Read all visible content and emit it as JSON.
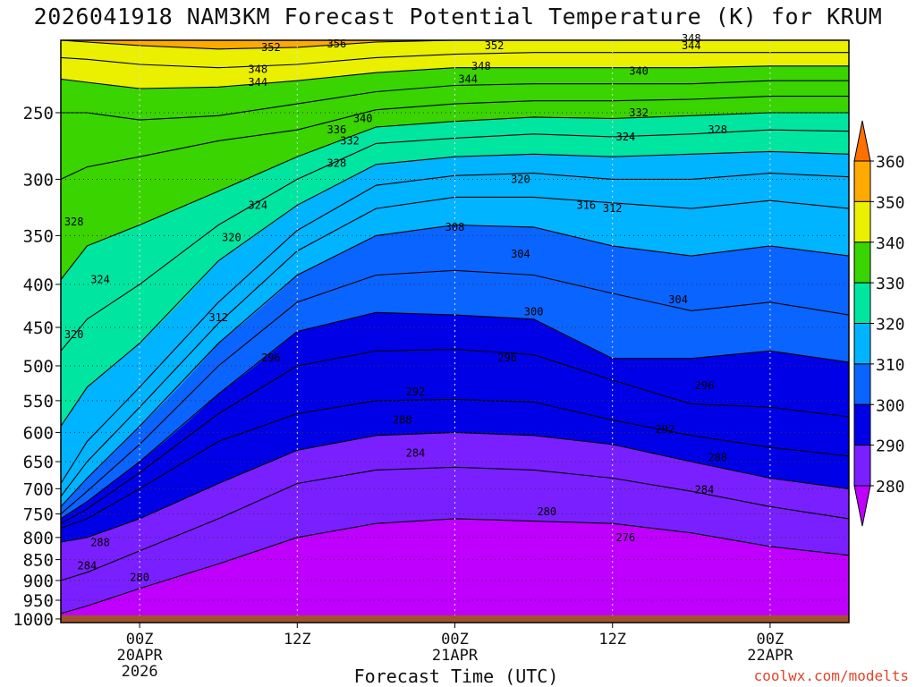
{
  "title": "2026041918 NAM3KM Forecast Potential Temperature (K) for KRUM",
  "credit": "coolwx.com/modelts",
  "chart_data": {
    "type": "heatmap",
    "title": "2026041918 NAM3KM Forecast Potential Temperature (K) for KRUM",
    "xlabel": "Forecast Time (UTC)",
    "ylabel": "",
    "x_start_label": "19 APR 2026 18Z",
    "xlim_hours_from_00Z_20APR": [
      -6,
      54
    ],
    "x_ticks": [
      {
        "hour": 0,
        "lines": [
          "00Z",
          "20APR",
          "2026"
        ]
      },
      {
        "hour": 12,
        "lines": [
          "12Z"
        ]
      },
      {
        "hour": 24,
        "lines": [
          "00Z",
          "21APR"
        ]
      },
      {
        "hour": 36,
        "lines": [
          "12Z"
        ]
      },
      {
        "hour": 48,
        "lines": [
          "00Z",
          "22APR"
        ]
      }
    ],
    "y_scale": "log-pressure",
    "ylim_hPa": [
      1000,
      200
    ],
    "y_ticks": [
      250,
      300,
      350,
      400,
      450,
      500,
      550,
      600,
      650,
      700,
      750,
      800,
      850,
      900,
      950,
      1000
    ],
    "grid": "dotted",
    "colorbar": {
      "placement": "right",
      "ticks": [
        280,
        290,
        300,
        310,
        320,
        330,
        340,
        350,
        360
      ],
      "colors": [
        "#bf00ff",
        "#7a1fff",
        "#0000e6",
        "#0a64ff",
        "#00b4ff",
        "#00e6a0",
        "#3ad400",
        "#eaf000",
        "#ffaa00",
        "#ff7000"
      ]
    },
    "contour_interval_K": 4,
    "ground_color": "#a0522d",
    "ground_top_hPa": 990,
    "potential_temperature_contours_K": [
      {
        "theta": 280,
        "points": [
          [
            -6,
            985
          ],
          [
            -4,
            965
          ],
          [
            0,
            920
          ],
          [
            6,
            860
          ],
          [
            12,
            800
          ],
          [
            18,
            770
          ],
          [
            24,
            760
          ],
          [
            30,
            765
          ],
          [
            36,
            770
          ],
          [
            42,
            790
          ],
          [
            48,
            820
          ],
          [
            54,
            840
          ]
        ]
      },
      {
        "theta": 284,
        "points": [
          [
            -6,
            900
          ],
          [
            -4,
            880
          ],
          [
            0,
            830
          ],
          [
            6,
            760
          ],
          [
            12,
            690
          ],
          [
            18,
            665
          ],
          [
            24,
            660
          ],
          [
            30,
            665
          ],
          [
            36,
            680
          ],
          [
            42,
            705
          ],
          [
            48,
            735
          ],
          [
            54,
            760
          ]
        ]
      },
      {
        "theta": 288,
        "points": [
          [
            -6,
            810
          ],
          [
            -4,
            800
          ],
          [
            0,
            760
          ],
          [
            6,
            690
          ],
          [
            12,
            630
          ],
          [
            18,
            605
          ],
          [
            24,
            600
          ],
          [
            30,
            605
          ],
          [
            36,
            620
          ],
          [
            42,
            650
          ],
          [
            48,
            680
          ],
          [
            54,
            700
          ]
        ]
      },
      {
        "theta": 292,
        "points": [
          [
            -6,
            780
          ],
          [
            -4,
            760
          ],
          [
            0,
            700
          ],
          [
            6,
            615
          ],
          [
            12,
            570
          ],
          [
            18,
            550
          ],
          [
            24,
            548
          ],
          [
            30,
            552
          ],
          [
            36,
            580
          ],
          [
            42,
            605
          ],
          [
            48,
            625
          ],
          [
            54,
            640
          ]
        ]
      },
      {
        "theta": 296,
        "points": [
          [
            -6,
            770
          ],
          [
            -4,
            740
          ],
          [
            0,
            670
          ],
          [
            6,
            570
          ],
          [
            12,
            500
          ],
          [
            18,
            480
          ],
          [
            24,
            478
          ],
          [
            30,
            485
          ],
          [
            36,
            520
          ],
          [
            42,
            555
          ],
          [
            48,
            560
          ],
          [
            54,
            575
          ]
        ]
      },
      {
        "theta": 300,
        "points": [
          [
            -6,
            760
          ],
          [
            -4,
            725
          ],
          [
            0,
            650
          ],
          [
            6,
            540
          ],
          [
            12,
            455
          ],
          [
            18,
            432
          ],
          [
            24,
            435
          ],
          [
            30,
            440
          ],
          [
            36,
            490
          ],
          [
            42,
            490
          ],
          [
            48,
            480
          ],
          [
            54,
            495
          ]
        ]
      },
      {
        "theta": 304,
        "points": [
          [
            -6,
            750
          ],
          [
            -4,
            705
          ],
          [
            0,
            620
          ],
          [
            6,
            500
          ],
          [
            12,
            420
          ],
          [
            18,
            390
          ],
          [
            24,
            385
          ],
          [
            30,
            390
          ],
          [
            36,
            410
          ],
          [
            42,
            430
          ],
          [
            48,
            420
          ],
          [
            54,
            435
          ]
        ]
      },
      {
        "theta": 308,
        "points": [
          [
            -6,
            735
          ],
          [
            -4,
            680
          ],
          [
            0,
            590
          ],
          [
            6,
            470
          ],
          [
            12,
            390
          ],
          [
            18,
            350
          ],
          [
            24,
            340
          ],
          [
            30,
            342
          ],
          [
            36,
            360
          ],
          [
            42,
            370
          ],
          [
            48,
            360
          ],
          [
            54,
            370
          ]
        ]
      },
      {
        "theta": 312,
        "points": [
          [
            -6,
            715
          ],
          [
            -4,
            650
          ],
          [
            0,
            560
          ],
          [
            6,
            445
          ],
          [
            12,
            365
          ],
          [
            18,
            325
          ],
          [
            24,
            315
          ],
          [
            30,
            315
          ],
          [
            36,
            320
          ],
          [
            42,
            325
          ],
          [
            48,
            318
          ],
          [
            54,
            325
          ]
        ]
      },
      {
        "theta": 316,
        "points": [
          [
            -6,
            690
          ],
          [
            -4,
            615
          ],
          [
            0,
            530
          ],
          [
            6,
            420
          ],
          [
            12,
            345
          ],
          [
            18,
            305
          ],
          [
            24,
            297
          ],
          [
            30,
            295
          ],
          [
            36,
            300
          ],
          [
            42,
            300
          ],
          [
            48,
            295
          ],
          [
            54,
            298
          ]
        ]
      },
      {
        "theta": 320,
        "points": [
          [
            -6,
            590
          ],
          [
            -4,
            530
          ],
          [
            0,
            470
          ],
          [
            6,
            375
          ],
          [
            12,
            322
          ],
          [
            18,
            288
          ],
          [
            24,
            282
          ],
          [
            30,
            280
          ],
          [
            36,
            282
          ],
          [
            42,
            280
          ],
          [
            48,
            278
          ],
          [
            54,
            280
          ]
        ]
      },
      {
        "theta": 324,
        "points": [
          [
            -6,
            480
          ],
          [
            -4,
            440
          ],
          [
            0,
            400
          ],
          [
            6,
            340
          ],
          [
            12,
            300
          ],
          [
            18,
            272
          ],
          [
            24,
            268
          ],
          [
            30,
            265
          ],
          [
            36,
            267
          ],
          [
            42,
            265
          ],
          [
            48,
            262
          ],
          [
            54,
            263
          ]
        ]
      },
      {
        "theta": 328,
        "points": [
          [
            -6,
            395
          ],
          [
            -4,
            360
          ],
          [
            0,
            340
          ],
          [
            6,
            310
          ],
          [
            12,
            282
          ],
          [
            18,
            260
          ],
          [
            24,
            256
          ],
          [
            30,
            253
          ],
          [
            36,
            254
          ],
          [
            42,
            252
          ],
          [
            48,
            250
          ],
          [
            54,
            250
          ]
        ]
      },
      {
        "theta": 332,
        "points": [
          [
            -6,
            300
          ],
          [
            -4,
            290
          ],
          [
            0,
            282
          ],
          [
            6,
            270
          ],
          [
            12,
            262
          ],
          [
            18,
            248
          ],
          [
            24,
            244
          ],
          [
            30,
            242
          ],
          [
            36,
            242
          ],
          [
            42,
            241
          ],
          [
            48,
            239
          ],
          [
            54,
            239
          ]
        ]
      },
      {
        "theta": 336,
        "points": [
          [
            -6,
            250
          ],
          [
            -4,
            250
          ],
          [
            0,
            255
          ],
          [
            6,
            252
          ],
          [
            12,
            244
          ],
          [
            18,
            236
          ],
          [
            24,
            232
          ],
          [
            30,
            231
          ],
          [
            36,
            231
          ],
          [
            42,
            231
          ],
          [
            48,
            229
          ],
          [
            54,
            229
          ]
        ]
      },
      {
        "theta": 340,
        "points": [
          [
            -6,
            228
          ],
          [
            -4,
            230
          ],
          [
            0,
            234
          ],
          [
            6,
            233
          ],
          [
            12,
            229
          ],
          [
            18,
            224
          ],
          [
            24,
            221
          ],
          [
            30,
            221
          ],
          [
            36,
            221
          ],
          [
            42,
            221
          ],
          [
            48,
            220
          ],
          [
            54,
            220
          ]
        ]
      },
      {
        "theta": 344,
        "points": [
          [
            -6,
            215
          ],
          [
            -4,
            216
          ],
          [
            0,
            219
          ],
          [
            6,
            221
          ],
          [
            12,
            219
          ],
          [
            18,
            215
          ],
          [
            24,
            213
          ],
          [
            30,
            212
          ],
          [
            36,
            212
          ],
          [
            42,
            212
          ],
          [
            48,
            212
          ],
          [
            54,
            212
          ]
        ]
      },
      {
        "theta": 348,
        "points": [
          [
            -6,
            205
          ],
          [
            -4,
            206
          ],
          [
            0,
            208
          ],
          [
            6,
            210
          ],
          [
            12,
            209
          ],
          [
            18,
            206
          ],
          [
            24,
            205
          ],
          [
            30,
            205
          ],
          [
            36,
            205
          ],
          [
            42,
            205
          ],
          [
            48,
            205
          ],
          [
            54,
            205
          ]
        ]
      },
      {
        "theta": 352,
        "points": [
          [
            0,
            200
          ],
          [
            6,
            202
          ],
          [
            12,
            201
          ],
          [
            18,
            199
          ],
          [
            24,
            198
          ],
          [
            30,
            199
          ],
          [
            36,
            199
          ],
          [
            42,
            199
          ],
          [
            48,
            199
          ],
          [
            54,
            199
          ]
        ]
      },
      {
        "theta": 356,
        "points": [
          [
            12,
            195
          ],
          [
            18,
            192
          ],
          [
            24,
            193
          ],
          [
            30,
            194
          ],
          [
            36,
            195
          ]
        ]
      }
    ],
    "contour_labels": [
      {
        "text": "352",
        "hour": 10,
        "hPa": 209
      },
      {
        "text": "356",
        "hour": 15,
        "hPa": 207
      },
      {
        "text": "352",
        "hour": 27,
        "hPa": 208
      },
      {
        "text": "348",
        "hour": 42,
        "hPa": 204
      },
      {
        "text": "344",
        "hour": 42,
        "hPa": 208
      },
      {
        "text": "348",
        "hour": 9,
        "hPa": 222
      },
      {
        "text": "344",
        "hour": 9,
        "hPa": 230
      },
      {
        "text": "348",
        "hour": 26,
        "hPa": 220
      },
      {
        "text": "344",
        "hour": 25,
        "hPa": 228
      },
      {
        "text": "340",
        "hour": 38,
        "hPa": 223
      },
      {
        "text": "340",
        "hour": 17,
        "hPa": 254
      },
      {
        "text": "336",
        "hour": 15,
        "hPa": 262
      },
      {
        "text": "332",
        "hour": 16,
        "hPa": 270
      },
      {
        "text": "332",
        "hour": 38,
        "hPa": 250
      },
      {
        "text": "328",
        "hour": 15,
        "hPa": 287
      },
      {
        "text": "324",
        "hour": 9,
        "hPa": 322
      },
      {
        "text": "324",
        "hour": 37,
        "hPa": 267
      },
      {
        "text": "328",
        "hour": 44,
        "hPa": 262
      },
      {
        "text": "320",
        "hour": 29,
        "hPa": 300
      },
      {
        "text": "316",
        "hour": 34,
        "hPa": 322
      },
      {
        "text": "312",
        "hour": 36,
        "hPa": 325
      },
      {
        "text": "328",
        "hour": -5,
        "hPa": 337
      },
      {
        "text": "320",
        "hour": 7,
        "hPa": 352
      },
      {
        "text": "308",
        "hour": 24,
        "hPa": 342
      },
      {
        "text": "304",
        "hour": 29,
        "hPa": 368
      },
      {
        "text": "324",
        "hour": -3,
        "hPa": 395
      },
      {
        "text": "304",
        "hour": 41,
        "hPa": 417
      },
      {
        "text": "312",
        "hour": 6,
        "hPa": 438
      },
      {
        "text": "300",
        "hour": 30,
        "hPa": 431
      },
      {
        "text": "320",
        "hour": -5,
        "hPa": 459
      },
      {
        "text": "296",
        "hour": 10,
        "hPa": 489
      },
      {
        "text": "296",
        "hour": 28,
        "hPa": 489
      },
      {
        "text": "292",
        "hour": 21,
        "hPa": 537
      },
      {
        "text": "296",
        "hour": 43,
        "hPa": 528
      },
      {
        "text": "288",
        "hour": 20,
        "hPa": 580
      },
      {
        "text": "292",
        "hour": 40,
        "hPa": 595
      },
      {
        "text": "284",
        "hour": 21,
        "hPa": 635
      },
      {
        "text": "288",
        "hour": 44,
        "hPa": 643
      },
      {
        "text": "284",
        "hour": 43,
        "hPa": 702
      },
      {
        "text": "280",
        "hour": 31,
        "hPa": 745
      },
      {
        "text": "276",
        "hour": 37,
        "hPa": 800
      },
      {
        "text": "288",
        "hour": -3,
        "hPa": 811
      },
      {
        "text": "284",
        "hour": -4,
        "hPa": 865
      },
      {
        "text": "280",
        "hour": 0,
        "hPa": 892
      }
    ]
  }
}
